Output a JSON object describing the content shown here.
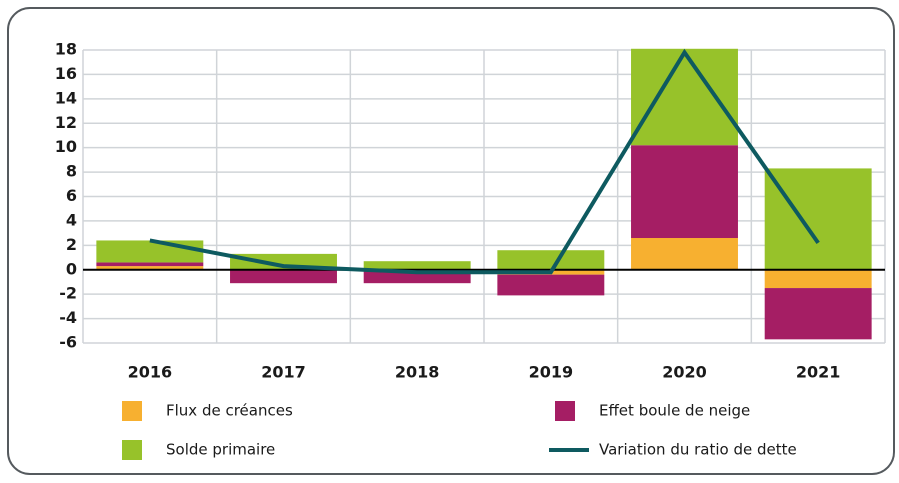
{
  "chart_data": {
    "type": "bar",
    "categories": [
      "2016",
      "2017",
      "2018",
      "2019",
      "2020",
      "2021"
    ],
    "series": [
      {
        "name": "Flux de créances",
        "color": "#f7b030",
        "values": [
          0.3,
          0,
          0,
          -0.4,
          2.6,
          -1.5
        ]
      },
      {
        "name": "Effet boule de neige",
        "color": "#a51e64",
        "values": [
          0.3,
          -1.1,
          -1.1,
          -1.7,
          7.6,
          -4.2
        ]
      },
      {
        "name": "Solde primaire",
        "color": "#97c22a",
        "values": [
          1.8,
          1.3,
          0.7,
          1.6,
          7.9,
          8.3
        ]
      },
      {
        "name": "Variation du ratio de dette",
        "color": "#0e5a60",
        "type": "line",
        "values": [
          2.4,
          0.3,
          -0.2,
          -0.2,
          17.8,
          2.2
        ]
      }
    ],
    "ylim": [
      -6,
      18
    ],
    "yticks": [
      -6,
      -4,
      -2,
      0,
      2,
      4,
      6,
      8,
      10,
      12,
      14,
      16,
      18
    ],
    "grid": true
  }
}
